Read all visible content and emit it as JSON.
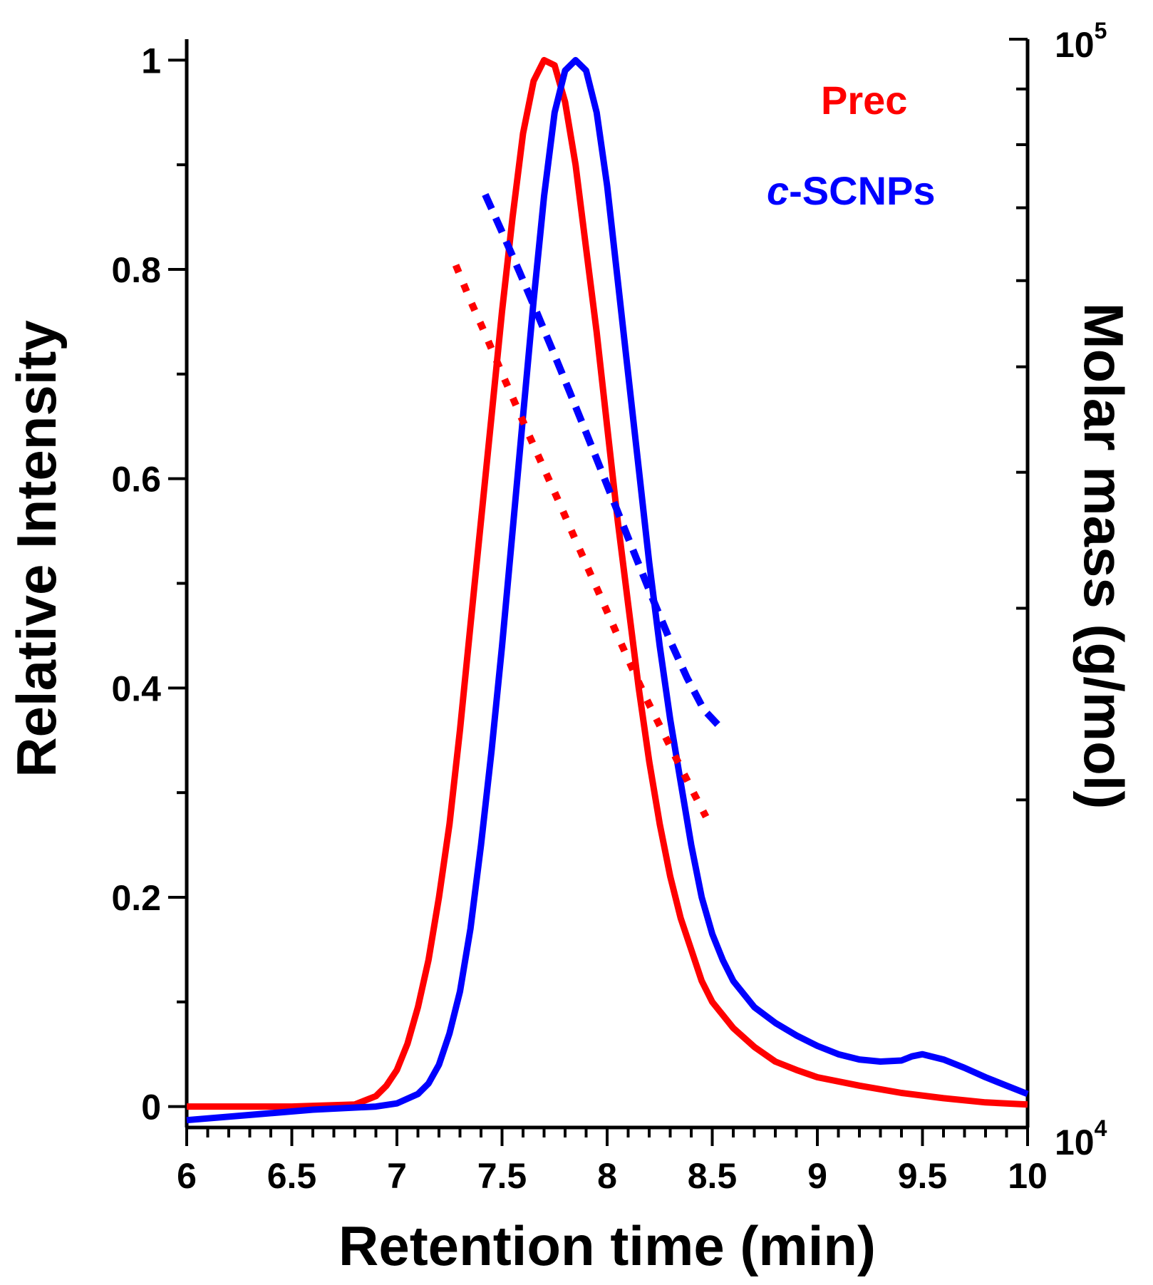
{
  "chart_data": {
    "type": "line",
    "xlabel": "Retention time (min)",
    "ylabel": "Relative Intensity",
    "y2label": "Molar mass (g/mol)",
    "xlim": [
      6,
      10
    ],
    "ylim": [
      -0.02,
      1.02
    ],
    "y2lim_log10": [
      4,
      5
    ],
    "x_ticks": [
      {
        "value": 6,
        "label": "6"
      },
      {
        "value": 6.5,
        "label": "6.5"
      },
      {
        "value": 7,
        "label": "7"
      },
      {
        "value": 7.5,
        "label": "7.5"
      },
      {
        "value": 8,
        "label": "8"
      },
      {
        "value": 8.5,
        "label": "8.5"
      },
      {
        "value": 9,
        "label": "9"
      },
      {
        "value": 9.5,
        "label": "9.5"
      },
      {
        "value": 10,
        "label": "10"
      }
    ],
    "y_ticks": [
      {
        "value": 0,
        "label": "0"
      },
      {
        "value": 0.2,
        "label": "0.2"
      },
      {
        "value": 0.4,
        "label": "0.4"
      },
      {
        "value": 0.6,
        "label": "0.6"
      },
      {
        "value": 0.8,
        "label": "0.8"
      },
      {
        "value": 1,
        "label": "1"
      }
    ],
    "y2_ticks": [
      {
        "value": 10000,
        "base": "10",
        "exp": "4"
      },
      {
        "value": 100000,
        "base": "10",
        "exp": "5"
      }
    ],
    "series": [
      {
        "name": "Prec",
        "label_prefix": "",
        "label_main": "Prec",
        "color": "#ff0000",
        "style": "solid",
        "axis": "left",
        "x": [
          6.0,
          6.5,
          6.8,
          6.9,
          6.95,
          7.0,
          7.05,
          7.1,
          7.15,
          7.2,
          7.25,
          7.3,
          7.35,
          7.4,
          7.45,
          7.5,
          7.55,
          7.6,
          7.65,
          7.7,
          7.75,
          7.8,
          7.85,
          7.9,
          7.95,
          8.0,
          8.05,
          8.1,
          8.15,
          8.2,
          8.25,
          8.3,
          8.35,
          8.4,
          8.45,
          8.5,
          8.6,
          8.7,
          8.8,
          8.9,
          9.0,
          9.2,
          9.4,
          9.6,
          9.8,
          10.0
        ],
        "y": [
          0.0,
          0.0,
          0.002,
          0.01,
          0.02,
          0.035,
          0.06,
          0.095,
          0.14,
          0.2,
          0.27,
          0.36,
          0.46,
          0.56,
          0.66,
          0.76,
          0.85,
          0.93,
          0.98,
          1.0,
          0.995,
          0.96,
          0.9,
          0.82,
          0.74,
          0.65,
          0.56,
          0.48,
          0.4,
          0.33,
          0.27,
          0.22,
          0.18,
          0.15,
          0.12,
          0.1,
          0.075,
          0.057,
          0.043,
          0.035,
          0.028,
          0.02,
          0.013,
          0.008,
          0.004,
          0.002
        ]
      },
      {
        "name": "c-SCNPs",
        "label_prefix": "c",
        "label_main": "-SCNPs",
        "color": "#0000ff",
        "style": "solid",
        "axis": "left",
        "x": [
          6.0,
          6.3,
          6.6,
          6.9,
          7.0,
          7.1,
          7.15,
          7.2,
          7.25,
          7.3,
          7.35,
          7.4,
          7.45,
          7.5,
          7.55,
          7.6,
          7.65,
          7.7,
          7.75,
          7.8,
          7.85,
          7.9,
          7.95,
          8.0,
          8.05,
          8.1,
          8.15,
          8.2,
          8.25,
          8.3,
          8.35,
          8.4,
          8.45,
          8.5,
          8.55,
          8.6,
          8.7,
          8.8,
          8.9,
          9.0,
          9.1,
          9.2,
          9.3,
          9.4,
          9.45,
          9.5,
          9.6,
          9.7,
          9.8,
          9.9,
          10.0
        ],
        "y": [
          -0.013,
          -0.008,
          -0.003,
          0.0,
          0.003,
          0.012,
          0.022,
          0.04,
          0.07,
          0.11,
          0.17,
          0.25,
          0.34,
          0.44,
          0.55,
          0.66,
          0.77,
          0.87,
          0.95,
          0.99,
          1.0,
          0.99,
          0.95,
          0.88,
          0.79,
          0.7,
          0.61,
          0.52,
          0.44,
          0.37,
          0.31,
          0.25,
          0.2,
          0.165,
          0.14,
          0.12,
          0.095,
          0.08,
          0.068,
          0.058,
          0.05,
          0.045,
          0.043,
          0.044,
          0.048,
          0.05,
          0.045,
          0.037,
          0.028,
          0.02,
          0.012
        ]
      },
      {
        "name": "Prec molar mass",
        "color": "#ff0000",
        "style": "dotted",
        "axis": "right",
        "x": [
          7.28,
          7.35,
          7.42,
          7.49,
          7.56,
          7.63,
          7.7,
          7.77,
          7.84,
          7.91,
          7.98,
          8.05,
          8.12,
          8.19,
          8.26,
          8.33,
          8.4,
          8.47
        ],
        "y": [
          62000,
          57500,
          53600,
          49800,
          46400,
          43200,
          40300,
          37600,
          35000,
          32600,
          30400,
          28300,
          26400,
          24700,
          23200,
          21800,
          20500,
          19300
        ]
      },
      {
        "name": "c-SCNPs molar mass",
        "color": "#0000ff",
        "style": "dashed",
        "axis": "right",
        "x": [
          7.42,
          7.5,
          7.58,
          7.66,
          7.74,
          7.82,
          7.9,
          7.98,
          8.06,
          8.14,
          8.22,
          8.3,
          8.38,
          8.46,
          8.54
        ],
        "y": [
          72000,
          66500,
          61300,
          56400,
          51800,
          47500,
          43500,
          39800,
          36400,
          33300,
          30500,
          28000,
          25900,
          24200,
          23300
        ]
      }
    ]
  }
}
